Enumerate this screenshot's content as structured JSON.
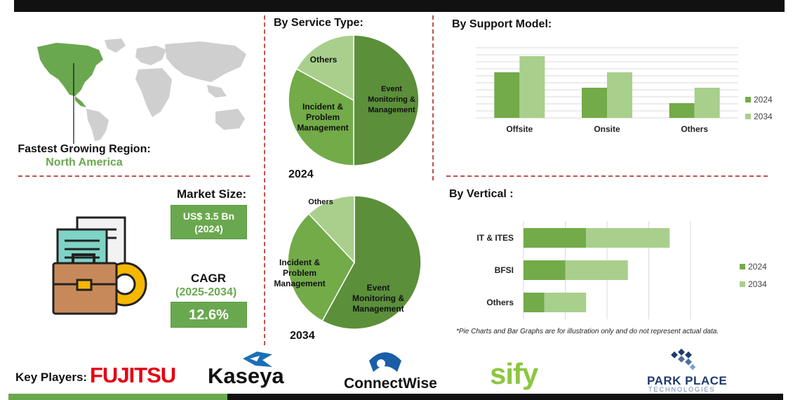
{
  "region": {
    "label": "Fastest Growing Region:",
    "value": "North America"
  },
  "market": {
    "size_label": "Market Size:",
    "size_value_line1": "US$ 3.5 Bn",
    "size_value_line2": "(2024)",
    "cagr_label": "CAGR",
    "cagr_period": "(2025-2034)",
    "cagr_value": "12.6%"
  },
  "sections": {
    "service_type": "By Service Type:",
    "support_model": "By Support Model:",
    "vertical": "By Vertical :"
  },
  "footnote": "*Pie Charts and Bar Graphs are for illustration only and do not represent actual data.",
  "key_players": {
    "label": "Key Players:",
    "names": [
      "FUJITSU",
      "Kaseya",
      "ConnectWise",
      "sify",
      "PARK PLACE",
      "TECHNOLOGIES"
    ]
  },
  "colors": {
    "dark_green": "#5b8f3a",
    "mid_green": "#72ab48",
    "light_green": "#a9cf8c",
    "accent_green": "#6aa84f",
    "divider_red": "#c0504d",
    "fujitsu_red": "#e60012",
    "connectwise_blue": "#1a5ea8",
    "sify_green": "#8dc63f"
  },
  "chart_data": [
    {
      "type": "pie",
      "title": "2024",
      "labels": [
        "Event Monitoring & Management",
        "Incident & Problem Management",
        "Others"
      ],
      "values": [
        50,
        33,
        17
      ]
    },
    {
      "type": "pie",
      "title": "2034",
      "labels": [
        "Event Monitoring & Management",
        "Incident & Problem Management",
        "Others"
      ],
      "values": [
        58,
        30,
        12
      ]
    },
    {
      "type": "bar",
      "title": "By Support Model:",
      "categories": [
        "Offsite",
        "Onsite",
        "Others"
      ],
      "series": [
        {
          "name": "2024",
          "values": [
            65,
            43,
            21
          ]
        },
        {
          "name": "2034",
          "values": [
            88,
            65,
            43
          ]
        }
      ],
      "ylim": [
        0,
        100
      ],
      "grid": true,
      "legend": "right"
    },
    {
      "type": "bar",
      "orientation": "horizontal",
      "stacked": true,
      "title": "By Vertical :",
      "categories": [
        "IT & ITES",
        "BFSI",
        "Others"
      ],
      "series": [
        {
          "name": "2024",
          "values": [
            15,
            10,
            5
          ]
        },
        {
          "name": "2034",
          "values": [
            20,
            15,
            10
          ]
        }
      ],
      "xlim": [
        0,
        40
      ],
      "grid": true,
      "legend": "right"
    }
  ]
}
